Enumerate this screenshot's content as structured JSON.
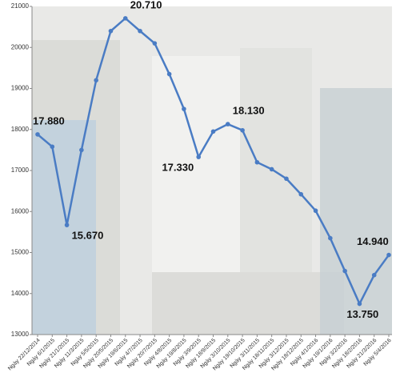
{
  "chart_data": {
    "type": "line",
    "categories": [
      "Ngày 22/12/2014",
      "Ngày 6/1/2015",
      "Ngày 21/1/2015",
      "Ngày 11/3/2015",
      "Ngày 5/5/2015",
      "Ngày 20/5/2015",
      "Ngày 19/6/2015",
      "Ngày 4/7/2015",
      "Ngày 20/7/2015",
      "Ngày 4/8/2015",
      "Ngày 19/8/2015",
      "Ngày 3/9/2015",
      "Ngày 18/9/2015",
      "Ngày 3/10/2015",
      "Ngày 19/10/2015",
      "Ngày 3/11/2015",
      "Ngày 18/11/2015",
      "Ngày 3/12/2015",
      "Ngày 18/12/2015",
      "Ngày 4/1/2016",
      "Ngày 19/1/2016",
      "Ngày 3/2/2016",
      "Ngày 18/2/2016",
      "Ngày 21/3/2016",
      "Ngày 5/4/2016"
    ],
    "values": [
      17880,
      17580,
      15670,
      17500,
      19200,
      20400,
      20710,
      20400,
      20100,
      19350,
      18500,
      17330,
      17950,
      18130,
      17980,
      17200,
      17030,
      16800,
      16420,
      16020,
      15350,
      14550,
      13750,
      14450,
      14940
    ],
    "value_labels": [
      "17.880",
      null,
      "15.670",
      null,
      null,
      null,
      "20.710",
      null,
      null,
      null,
      null,
      "17.330",
      null,
      "18.130",
      null,
      null,
      null,
      null,
      null,
      null,
      null,
      null,
      "13.750",
      null,
      "14.940"
    ],
    "color": "#4a7cc4",
    "ylim": [
      13000,
      21000
    ],
    "yticks": [
      13000,
      14000,
      15000,
      16000,
      17000,
      18000,
      19000,
      20000,
      21000
    ]
  }
}
